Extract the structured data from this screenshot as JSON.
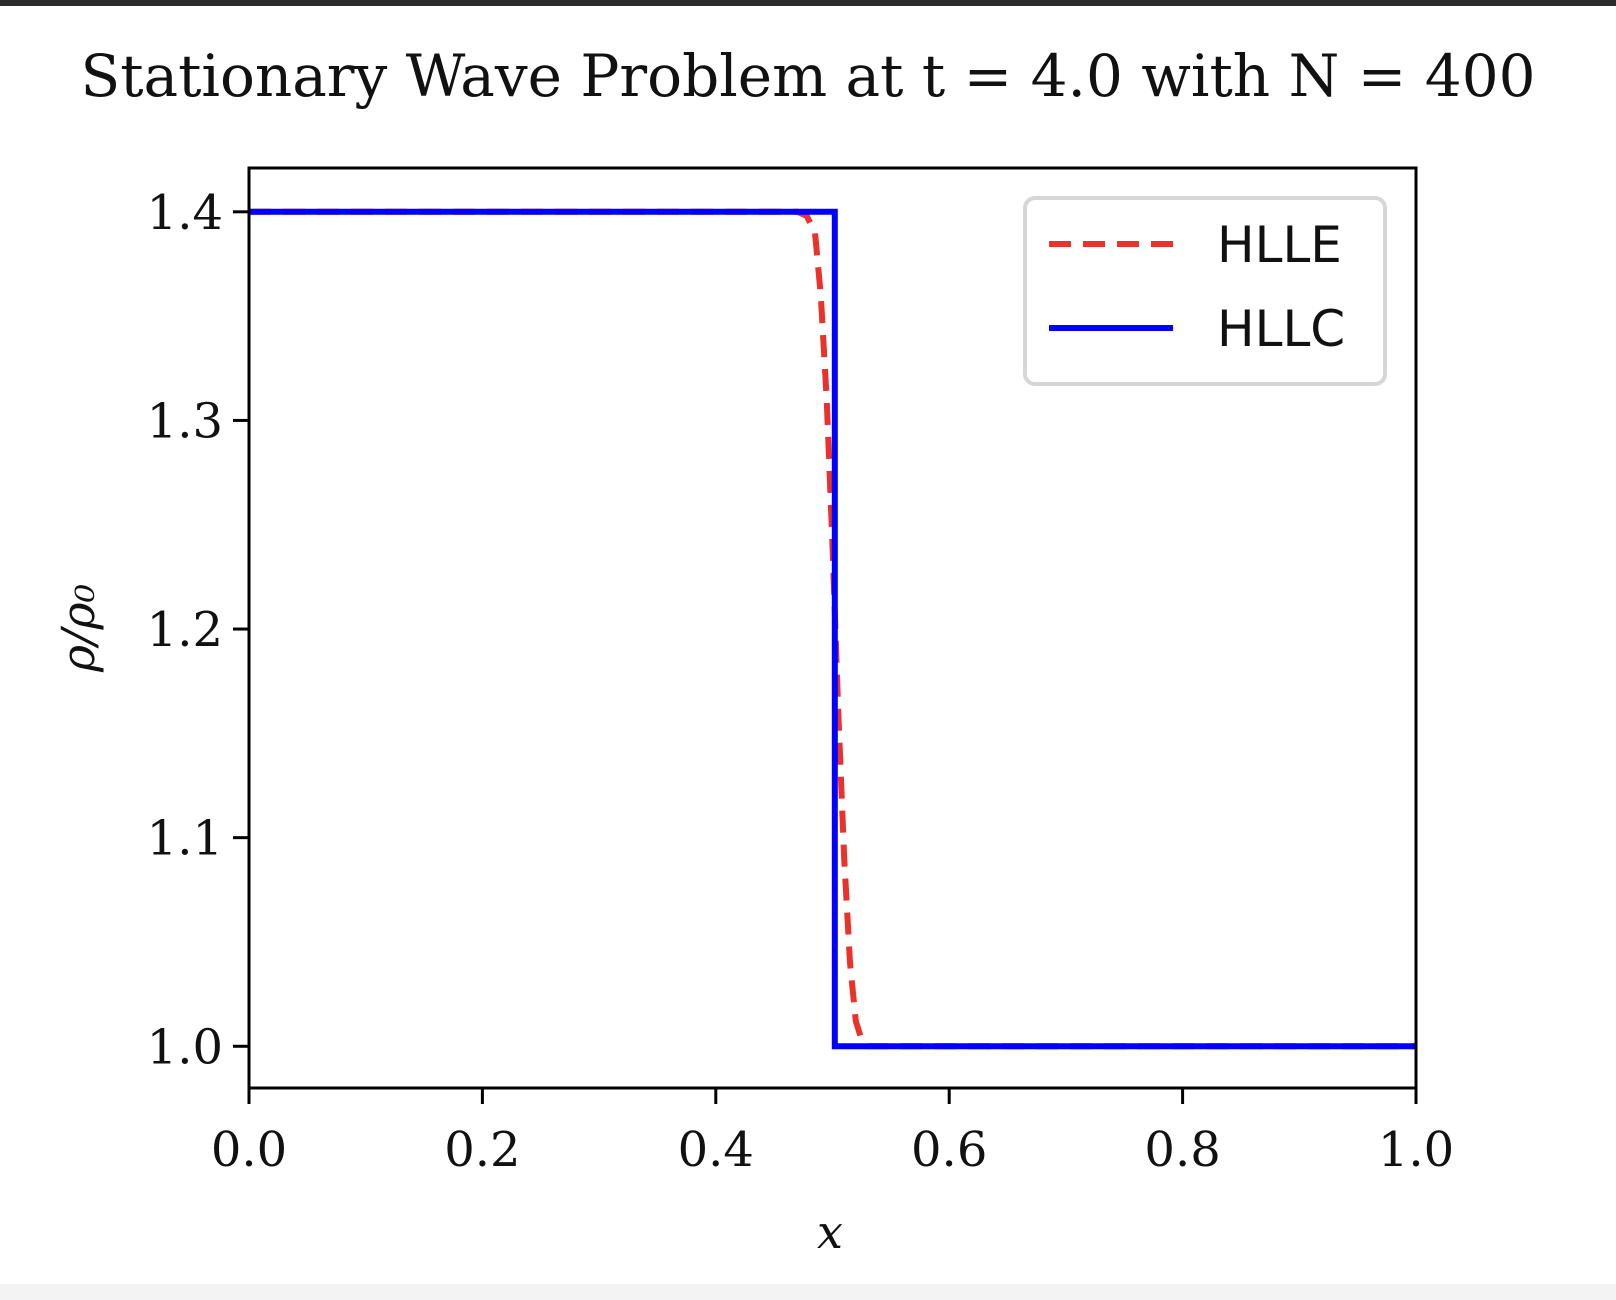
{
  "chart_data": {
    "type": "line",
    "title": "Stationary Wave Problem at t = 4.0 with N = 400",
    "xlabel": "x",
    "ylabel": "ρ/ρ₀",
    "xlim": [
      0.0,
      1.0
    ],
    "ylim": [
      0.98,
      1.421
    ],
    "xticks": [
      "0.0",
      "0.2",
      "0.4",
      "0.6",
      "0.8",
      "1.0"
    ],
    "yticks": [
      "1.0",
      "1.1",
      "1.2",
      "1.3",
      "1.4"
    ],
    "grid": false,
    "legend_position": "top-right",
    "series": [
      {
        "name": "HLLE",
        "color": "#e8322a",
        "style": "dashed",
        "x": [
          0.0,
          0.47,
          0.478,
          0.485,
          0.49,
          0.495,
          0.5,
          0.505,
          0.51,
          0.515,
          0.52,
          0.525,
          0.53,
          0.54,
          1.0
        ],
        "y": [
          1.4,
          1.4,
          1.398,
          1.39,
          1.36,
          1.31,
          1.24,
          1.16,
          1.09,
          1.04,
          1.012,
          1.003,
          1.0,
          1.0,
          1.0
        ]
      },
      {
        "name": "HLLC",
        "color": "#0000ff",
        "style": "solid",
        "x": [
          0.0,
          0.502,
          0.502,
          1.0
        ],
        "y": [
          1.4,
          1.4,
          1.0,
          1.0
        ]
      }
    ]
  }
}
